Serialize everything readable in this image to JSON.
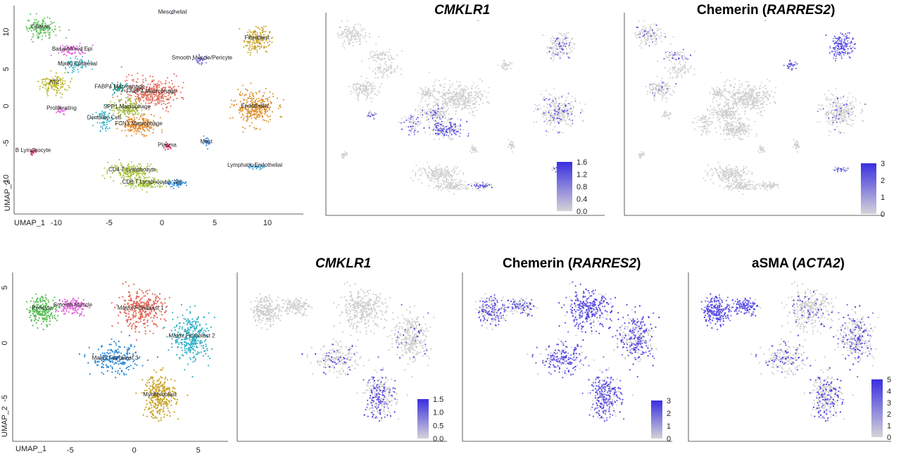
{
  "colors": {
    "grey": "#cfcfcf",
    "high": "#3a2ee0",
    "axis": "#333333",
    "cluster_palette": [
      "#5cc05a",
      "#e065d8",
      "#36b3c7",
      "#b8b424",
      "#e06a5a",
      "#2f9f8f",
      "#9fba3a",
      "#e0882a",
      "#7a6fe0",
      "#4a90e2",
      "#d6336c",
      "#c9a227",
      "#d98c24",
      "#3aa0d8",
      "#a3c13a",
      "#2c88d6",
      "#6a5acd"
    ]
  },
  "top_titles": [
    {
      "plain_before": "",
      "italic": "CMKLR1",
      "plain_after": ""
    },
    {
      "plain_before": "Chemerin (",
      "italic": "RARRES2",
      "plain_after": ")"
    }
  ],
  "bottom_titles": [
    {
      "plain_before": "",
      "italic": "CMKLR1",
      "plain_after": ""
    },
    {
      "plain_before": "Chemerin (",
      "italic": "RARRES2",
      "plain_after": ")"
    },
    {
      "plain_before": "aSMA (",
      "italic": "ACTA2",
      "plain_after": ")"
    }
  ],
  "chart_data": [
    {
      "type": "scatter",
      "name_id": "lung_umap_clusters",
      "xlabel": "UMAP_1",
      "ylabel": "UMAP_2",
      "xticks": [
        "-10",
        "-5",
        "0",
        "5",
        "10"
      ],
      "yticks": [
        "10",
        "5",
        "0",
        "-5",
        "-10"
      ],
      "xlim": [
        -14,
        13
      ],
      "ylim": [
        -14,
        13
      ],
      "clusters": [
        {
          "label": "Ciliated",
          "x": -11.5,
          "y": 10.5,
          "sx": 1.4,
          "sy": 1.2,
          "n": 140,
          "c": 0
        },
        {
          "label": "Basal/Mixed Epi",
          "x": -8.5,
          "y": 7.5,
          "sx": 1.2,
          "sy": 0.7,
          "n": 70,
          "c": 1
        },
        {
          "label": "Mixed Epithelial",
          "x": -8.0,
          "y": 5.5,
          "sx": 1.2,
          "sy": 0.9,
          "n": 70,
          "c": 2
        },
        {
          "label": "AT2",
          "x": -10.2,
          "y": 3.0,
          "sx": 1.2,
          "sy": 1.2,
          "n": 130,
          "c": 3
        },
        {
          "label": "FABP4 Macrophage",
          "x": -1.0,
          "y": 1.8,
          "sx": 2.2,
          "sy": 1.8,
          "n": 380,
          "c": 4
        },
        {
          "label": "FABP4 Macrophage",
          "x": -4.0,
          "y": 2.4,
          "sx": 0.8,
          "sy": 0.6,
          "n": 60,
          "c": 5
        },
        {
          "label": "SPP1 Macrophage",
          "x": -3.3,
          "y": -0.3,
          "sx": 1.3,
          "sy": 1.1,
          "n": 160,
          "c": 6
        },
        {
          "label": "FCN1 Macrophage",
          "x": -2.2,
          "y": -2.6,
          "sx": 1.6,
          "sy": 1.0,
          "n": 200,
          "c": 7
        },
        {
          "label": "Dendritic Cell",
          "x": -5.5,
          "y": -1.8,
          "sx": 0.9,
          "sy": 1.3,
          "n": 70,
          "c": 2
        },
        {
          "label": "Proliferating",
          "x": -9.5,
          "y": -0.5,
          "sx": 0.4,
          "sy": 0.5,
          "n": 25,
          "c": 1
        },
        {
          "label": "Mesothelial",
          "x": 1.0,
          "y": 12.5,
          "sx": 0.1,
          "sy": 0.1,
          "n": 2,
          "c": 8
        },
        {
          "label": "Smooth Muscle/Pericyte",
          "x": 3.8,
          "y": 6.3,
          "sx": 0.5,
          "sy": 0.6,
          "n": 35,
          "c": 8
        },
        {
          "label": "Fibroblast",
          "x": 9.0,
          "y": 9.0,
          "sx": 1.1,
          "sy": 1.6,
          "n": 170,
          "c": 11
        },
        {
          "label": "Endothelial",
          "x": 8.8,
          "y": -0.2,
          "sx": 1.7,
          "sy": 2.0,
          "n": 290,
          "c": 12
        },
        {
          "label": "Mast",
          "x": 4.2,
          "y": -5.0,
          "sx": 0.3,
          "sy": 0.6,
          "n": 30,
          "c": 9
        },
        {
          "label": "Plasma",
          "x": 0.5,
          "y": -5.5,
          "sx": 0.3,
          "sy": 0.4,
          "n": 25,
          "c": 10
        },
        {
          "label": "Lymphatic Endothelial",
          "x": 8.8,
          "y": -8.2,
          "sx": 0.8,
          "sy": 0.25,
          "n": 35,
          "c": 13
        },
        {
          "label": "B Lymphocyte",
          "x": -12.2,
          "y": -6.2,
          "sx": 0.3,
          "sy": 0.4,
          "n": 25,
          "c": 10
        },
        {
          "label": "CD4 T Lymphocyte",
          "x": -2.8,
          "y": -8.8,
          "sx": 2.0,
          "sy": 1.0,
          "n": 200,
          "c": 14
        },
        {
          "label": "CD8 T Lymphocyte",
          "x": -1.5,
          "y": -10.5,
          "sx": 1.6,
          "sy": 0.6,
          "n": 120,
          "c": 14
        },
        {
          "label": "NK",
          "x": 1.5,
          "y": -10.5,
          "sx": 0.9,
          "sy": 0.4,
          "n": 60,
          "c": 15
        }
      ]
    },
    {
      "type": "scatter",
      "name_id": "lung_cmklr1",
      "title": "CMKLR1",
      "legend_ticks": [
        "1.6",
        "1.2",
        "0.8",
        "0.4",
        "0.0"
      ],
      "expression": {
        "FABP4 Macrophage": 0.0,
        "SPP1 Macrophage": 0.15,
        "FCN1 Macrophage": 0.55,
        "Dendritic Cell": 0.45,
        "Endothelial": 0.18,
        "Fibroblast": 0.25,
        "Lymphatic Endothelial": 0.3,
        "NK": 0.6,
        "Proliferating": 0.3
      }
    },
    {
      "type": "scatter",
      "name_id": "lung_rarres2",
      "title": "Chemerin (RARRES2)",
      "legend_ticks": [
        "3",
        "2",
        "1",
        "0"
      ],
      "expression": {
        "Fibroblast": 0.95,
        "Smooth Muscle/Pericyte": 0.7,
        "Lymphatic Endothelial": 0.6,
        "Basal/Mixed Epi": 0.25,
        "Ciliated": 0.15,
        "Endothelial": 0.12,
        "AT2": 0.08
      }
    },
    {
      "type": "scatter",
      "name_id": "fibro_umap_clusters",
      "xlabel": "UMAP_1",
      "ylabel": "UMAP_2",
      "xticks": [
        "-5",
        "0",
        "5"
      ],
      "yticks": [
        "5",
        "0",
        "-5"
      ],
      "xlim": [
        -9.5,
        7
      ],
      "ylim": [
        -8.5,
        6
      ],
      "clusters": [
        {
          "label": "Pericyte",
          "x": -7.2,
          "y": 3.0,
          "sx": 1.0,
          "sy": 1.1,
          "n": 220,
          "c": 0
        },
        {
          "label": "Smooth Muscle",
          "x": -4.8,
          "y": 3.3,
          "sx": 1.0,
          "sy": 0.7,
          "n": 120,
          "c": 1
        },
        {
          "label": "Matrix Fibroblast 1",
          "x": 0.5,
          "y": 3.0,
          "sx": 1.7,
          "sy": 1.5,
          "n": 320,
          "c": 4
        },
        {
          "label": "Matrix Fibroblast 2",
          "x": 4.5,
          "y": 0.5,
          "sx": 1.3,
          "sy": 1.9,
          "n": 300,
          "c": 2
        },
        {
          "label": "Matrix Fibroblast 3",
          "x": -1.5,
          "y": -1.5,
          "sx": 1.7,
          "sy": 1.2,
          "n": 200,
          "c": 15
        },
        {
          "label": "Myofibroblast",
          "x": 2.0,
          "y": -4.8,
          "sx": 1.1,
          "sy": 1.8,
          "n": 290,
          "c": 11
        }
      ]
    },
    {
      "type": "scatter",
      "name_id": "fibro_cmklr1",
      "title": "CMKLR1",
      "legend_ticks": [
        "1.5",
        "1.0",
        "0.5",
        "0.0"
      ],
      "expression": {
        "Myofibroblast": 0.35,
        "Matrix Fibroblast 3": 0.15,
        "Matrix Fibroblast 2": 0.08
      }
    },
    {
      "type": "scatter",
      "name_id": "fibro_rarres2",
      "title": "Chemerin (RARRES2)",
      "legend_ticks": [
        "3",
        "2",
        "1",
        "0"
      ],
      "expression": {
        "Matrix Fibroblast 1": 0.8,
        "Matrix Fibroblast 2": 0.6,
        "Matrix Fibroblast 3": 0.75,
        "Myofibroblast": 0.7,
        "Pericyte": 0.45,
        "Smooth Muscle": 0.5
      }
    },
    {
      "type": "scatter",
      "name_id": "fibro_acta2",
      "title": "aSMA (ACTA2)",
      "legend_ticks": [
        "5",
        "4",
        "3",
        "2",
        "1",
        "0"
      ],
      "expression": {
        "Pericyte": 1.0,
        "Smooth Muscle": 0.9,
        "Myofibroblast": 0.4,
        "Matrix Fibroblast 2": 0.3,
        "Matrix Fibroblast 3": 0.25,
        "Matrix Fibroblast 1": 0.15
      }
    }
  ]
}
